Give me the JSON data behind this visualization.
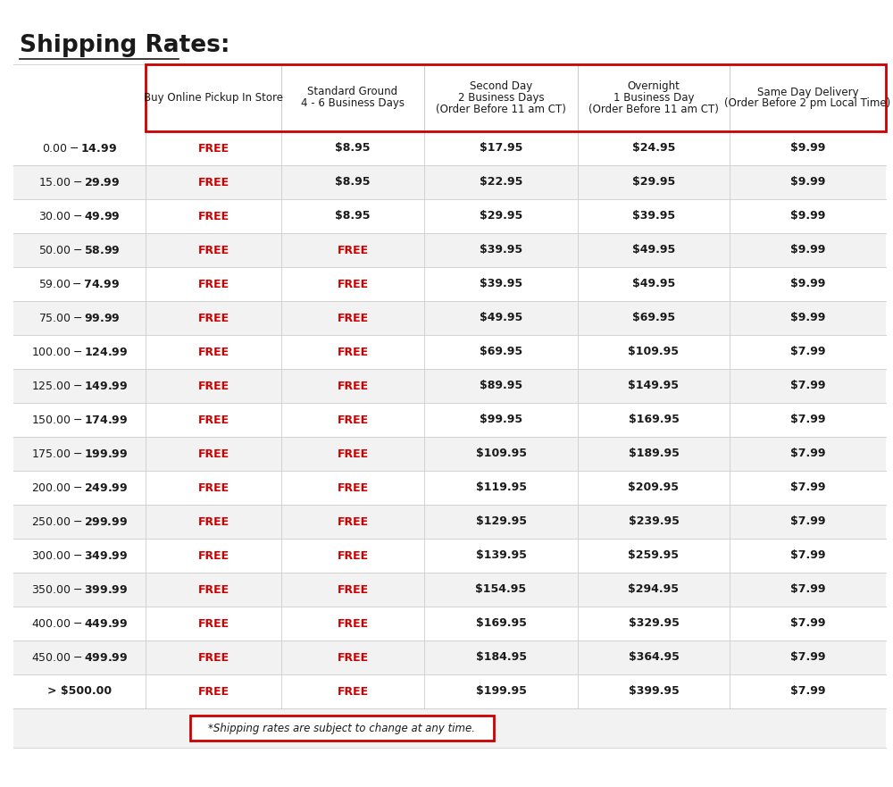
{
  "title": "Shipping Rates:",
  "col_headers": [
    "Buy Online Pickup In Store",
    "Standard Ground\n4 - 6 Business Days",
    "Second Day\n2 Business Days\n(Order Before 11 am CT)",
    "Overnight\n1 Business Day\n(Order Before 11 am CT)",
    "Same Day Delivery\n(Order Before 2 pm Local Time)"
  ],
  "row_labels": [
    "$0.00 - $14.99",
    "$15.00 - $29.99",
    "$30.00 - $49.99",
    "$50.00 - $58.99",
    "$59.00 - $74.99",
    "$75.00 - $99.99",
    "$100.00 - $124.99",
    "$125.00 - $149.99",
    "$150.00 - $174.99",
    "$175.00 - $199.99",
    "$200.00 - $249.99",
    "$250.00 - $299.99",
    "$300.00 - $349.99",
    "$350.00 - $399.99",
    "$400.00 -$449.99",
    "$450.00 - $499.99",
    "> $500.00"
  ],
  "table_data": [
    [
      "FREE",
      "$8.95",
      "$17.95",
      "$24.95",
      "$9.99"
    ],
    [
      "FREE",
      "$8.95",
      "$22.95",
      "$29.95",
      "$9.99"
    ],
    [
      "FREE",
      "$8.95",
      "$29.95",
      "$39.95",
      "$9.99"
    ],
    [
      "FREE",
      "FREE",
      "$39.95",
      "$49.95",
      "$9.99"
    ],
    [
      "FREE",
      "FREE",
      "$39.95",
      "$49.95",
      "$9.99"
    ],
    [
      "FREE",
      "FREE",
      "$49.95",
      "$69.95",
      "$9.99"
    ],
    [
      "FREE",
      "FREE",
      "$69.95",
      "$109.95",
      "$7.99"
    ],
    [
      "FREE",
      "FREE",
      "$89.95",
      "$149.95",
      "$7.99"
    ],
    [
      "FREE",
      "FREE",
      "$99.95",
      "$169.95",
      "$7.99"
    ],
    [
      "FREE",
      "FREE",
      "$109.95",
      "$189.95",
      "$7.99"
    ],
    [
      "FREE",
      "FREE",
      "$119.95",
      "$209.95",
      "$7.99"
    ],
    [
      "FREE",
      "FREE",
      "$129.95",
      "$239.95",
      "$7.99"
    ],
    [
      "FREE",
      "FREE",
      "$139.95",
      "$259.95",
      "$7.99"
    ],
    [
      "FREE",
      "FREE",
      "$154.95",
      "$294.95",
      "$7.99"
    ],
    [
      "FREE",
      "FREE",
      "$169.95",
      "$329.95",
      "$7.99"
    ],
    [
      "FREE",
      "FREE",
      "$184.95",
      "$364.95",
      "$7.99"
    ],
    [
      "FREE",
      "FREE",
      "$199.95",
      "$399.95",
      "$7.99"
    ]
  ],
  "free_color": "#cc0000",
  "price_color": "#1a1a1a",
  "row_label_color": "#1a1a1a",
  "header_color": "#1a1a1a",
  "title_color": "#1a1a1a",
  "border_color": "#cc0000",
  "row_bg_even": "#f2f2f2",
  "row_bg_odd": "#ffffff",
  "header_bg": "#ffffff",
  "grid_line_color": "#cccccc",
  "footer_note": "*Shipping rates are subject to change at any time.",
  "bg_color": "#ffffff",
  "fig_width": 10.0,
  "fig_height": 8.81,
  "dpi": 100
}
